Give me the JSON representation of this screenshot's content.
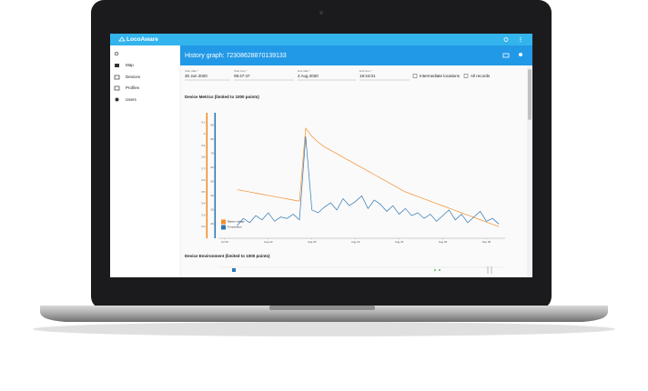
{
  "app": {
    "name": "LocoAware"
  },
  "sidebar": {
    "items": [
      "Map",
      "Devices",
      "Profiles",
      "Users"
    ]
  },
  "header": {
    "title": "History graph: 72308628870139133"
  },
  "form": {
    "fields": [
      {
        "label": "Start date *",
        "value": "30 Jun 2020"
      },
      {
        "label": "Start time *",
        "value": "08:47:47"
      },
      {
        "label": "End date *",
        "value": "4 Aug 2020"
      },
      {
        "label": "End time *",
        "value": "19:44:01"
      }
    ],
    "checkboxes": [
      "Intermediate locations",
      "All records"
    ]
  },
  "sections": {
    "environment_title": "Device Environment (limited to 1000 points)"
  },
  "chart_data": {
    "type": "line",
    "title": "Device Metrics (limited to 1000 points)",
    "x": [
      0,
      1,
      2,
      3,
      4,
      5,
      6,
      7,
      8,
      9,
      10,
      11,
      12,
      13,
      14,
      15,
      16,
      17,
      18,
      19,
      20,
      21,
      22,
      23,
      24,
      25,
      26,
      27,
      28,
      29,
      30,
      31,
      32,
      33,
      34,
      35,
      36,
      37,
      38,
      39,
      40,
      41,
      42,
      43,
      44
    ],
    "xlim": [
      -1,
      45
    ],
    "xticks": [
      {
        "value": 0,
        "label": "Jul 26"
      },
      {
        "value": 7,
        "label": "Aug 02"
      },
      {
        "value": 14,
        "label": "Aug 09"
      },
      {
        "value": 21,
        "label": "Aug 16"
      },
      {
        "value": 28,
        "label": "Aug 23"
      },
      {
        "value": 35,
        "label": "Aug 30"
      },
      {
        "value": 42,
        "label": "Sep 06"
      }
    ],
    "ylim": [
      3.1,
      4.2
    ],
    "yticks": [
      3.2,
      3.3,
      3.4,
      3.5,
      3.6,
      3.7,
      3.8,
      3.9,
      4.0,
      4.1
    ],
    "y2lim": [
      10,
      100
    ],
    "y2ticks": [
      20,
      30,
      40,
      50,
      60,
      70,
      80,
      90
    ],
    "series": [
      {
        "name": "Battery voltage",
        "color": "#f28e2b",
        "values": [
          null,
          null,
          3.52,
          3.51,
          3.5,
          3.49,
          3.48,
          3.47,
          3.46,
          3.45,
          3.44,
          3.43,
          3.42,
          4.05,
          3.98,
          3.93,
          3.89,
          3.86,
          3.83,
          3.8,
          3.77,
          3.74,
          3.71,
          3.68,
          3.65,
          3.62,
          3.59,
          3.56,
          3.53,
          3.5,
          3.48,
          3.46,
          3.44,
          3.42,
          3.4,
          3.38,
          3.36,
          3.34,
          3.32,
          3.3,
          3.28,
          3.26,
          3.24,
          3.22,
          3.2
        ]
      },
      {
        "name": "Temperature",
        "color": "#2f78b4",
        "axis": "y2",
        "values": [
          null,
          null,
          19,
          24,
          21,
          26,
          23,
          28,
          22,
          25,
          24,
          27,
          23,
          82,
          30,
          28,
          32,
          35,
          30,
          38,
          33,
          36,
          40,
          31,
          37,
          34,
          29,
          33,
          27,
          31,
          26,
          28,
          24,
          27,
          22,
          26,
          30,
          23,
          27,
          21,
          25,
          29,
          22,
          24,
          20
        ]
      }
    ]
  }
}
